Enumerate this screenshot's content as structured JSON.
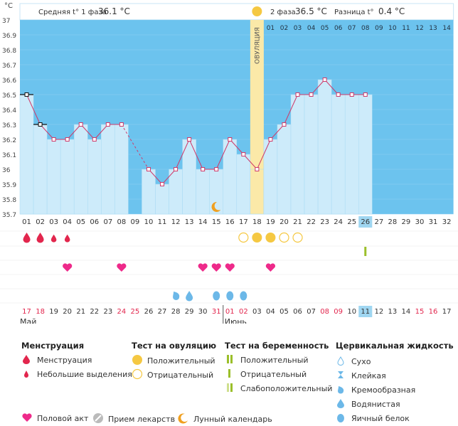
{
  "chart_data": {
    "type": "line",
    "y_unit": "°C",
    "ylim": [
      35.7,
      37
    ],
    "y_ticks": [
      "37",
      "36.9",
      "36.8",
      "36.7",
      "36.6",
      "36.5",
      "36.4",
      "36.3",
      "36.2",
      "36.1",
      "36",
      "35.9",
      "35.8",
      "35.7"
    ],
    "header": {
      "phase1_label": "Средняя t° 1 фаза",
      "phase1_value": "36.1 °C",
      "phase2_label": "2 фаза",
      "phase2_value": "36.5 °C",
      "diff_label": "Разница t°",
      "diff_value": "0.4 °C"
    },
    "ovulation_label": "ОВУЛЯЦИЯ",
    "ovulation_day_index": 17,
    "cycle_days": [
      "01",
      "02",
      "03",
      "04",
      "05",
      "06",
      "07",
      "08",
      "09",
      "10",
      "11",
      "12",
      "13",
      "14",
      "15",
      "16",
      "17",
      "18",
      "19",
      "20",
      "21",
      "22",
      "23",
      "24",
      "25",
      "26",
      "27",
      "28",
      "29",
      "30",
      "31",
      "32"
    ],
    "post_ovulation_days": [
      "01",
      "02",
      "03",
      "04",
      "05",
      "06",
      "07",
      "08",
      "09",
      "10",
      "11",
      "12",
      "13",
      "14"
    ],
    "today_index": 25,
    "temperatures": [
      36.5,
      36.3,
      36.2,
      36.2,
      36.3,
      36.2,
      36.3,
      36.3,
      null,
      36.0,
      35.9,
      36.0,
      36.2,
      36.0,
      36.0,
      36.2,
      36.1,
      36.0,
      36.2,
      36.3,
      36.5,
      36.5,
      36.6,
      36.5,
      36.5,
      36.5,
      null,
      null,
      null,
      null,
      null,
      null
    ],
    "black_markers": [
      0,
      1
    ],
    "dashed_segment": [
      7,
      9
    ],
    "calendar_dates": [
      "17",
      "18",
      "19",
      "20",
      "21",
      "22",
      "23",
      "24",
      "25",
      "26",
      "27",
      "28",
      "29",
      "30",
      "31",
      "01",
      "02",
      "03",
      "04",
      "05",
      "06",
      "07",
      "08",
      "09",
      "10",
      "11",
      "12",
      "13",
      "14",
      "15",
      "16",
      "17"
    ],
    "red_dates": [
      0,
      1,
      7,
      8,
      14,
      15,
      16,
      22,
      23,
      29,
      30
    ],
    "month_labels": [
      "Май",
      "Июнь"
    ],
    "month_start_index": [
      0,
      15
    ],
    "rows": {
      "menstruation": {
        "large": [
          0,
          1
        ],
        "small": [
          2,
          3
        ]
      },
      "ovulation_test": {
        "positive": [
          17,
          18
        ],
        "negative": [
          16,
          19,
          20
        ]
      },
      "pregnancy_test": {
        "positive": [
          25
        ]
      },
      "intercourse": [
        3,
        7,
        13,
        14,
        15,
        18
      ],
      "cervical_fluid": {
        "creamy": [
          11
        ],
        "watery": [
          12
        ],
        "eggwhite": [
          14,
          15,
          16
        ]
      },
      "moon": [
        14
      ]
    },
    "colors": {
      "blue_bg": "#6cc3ee",
      "bar_fill": "#cdebfa",
      "line": "#cf3a6a",
      "ovulation": "#fbe9a8",
      "red": "#e2264d",
      "yellow": "#f5c842",
      "green": "#9bbf2a",
      "pink": "#ee2a8a",
      "drop_blue": "#6cb8e8",
      "orange": "#f0a020",
      "today_bg": "#9fd6f1"
    }
  },
  "legend": {
    "menstruation": {
      "title": "Менструация",
      "items": [
        "Менструация",
        "Небольшие выделения"
      ]
    },
    "ovulation_test": {
      "title": "Тест на овуляцию",
      "items": [
        "Положительный",
        "Отрицательный"
      ]
    },
    "pregnancy_test": {
      "title": "Тест на беременность",
      "items": [
        "Положительный",
        "Отрицательный",
        "Слабоположительный"
      ]
    },
    "cervical": {
      "title": "Цервикальная жидкость",
      "items": [
        "Сухо",
        "Клейкая",
        "Кремообразная",
        "Водянистая",
        "Яичный белок"
      ]
    },
    "bottom": [
      "Половой акт",
      "Прием лекарств",
      "Лунный календарь"
    ]
  }
}
